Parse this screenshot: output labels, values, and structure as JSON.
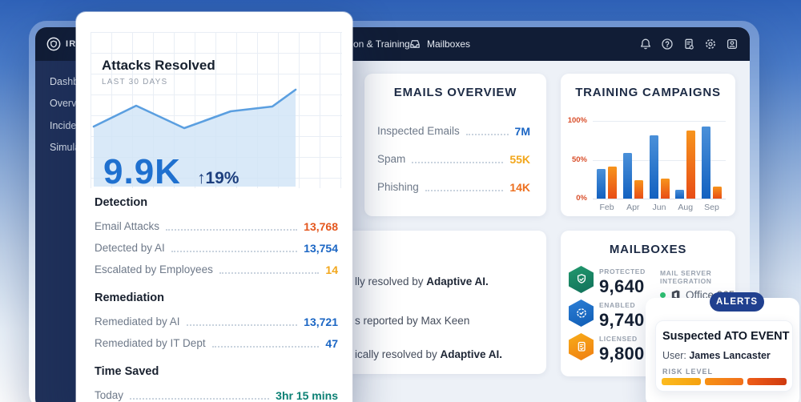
{
  "topbar": {
    "logo_text": "IRON",
    "nav_fragment": "on & Training",
    "nav_mailboxes": "Mailboxes",
    "icons": [
      "bell-icon",
      "help-icon",
      "report-icon",
      "settings-icon",
      "account-icon"
    ]
  },
  "sidebar": {
    "items": [
      "Dashb",
      "Overv",
      "Incide",
      "Simula"
    ]
  },
  "overlay_card": {
    "title": "Attacks Resolved",
    "subtitle": "LAST 30 DAYS",
    "big_stat": {
      "value": "9.9K",
      "value_color": "#1f70cf",
      "delta": "↑19%",
      "delta_color": "#1d3f7e"
    },
    "chart_data": {
      "type": "area",
      "title": "Attacks Resolved",
      "period": "LAST 30 DAYS",
      "points": [
        [
          4,
          118
        ],
        [
          57,
          92
        ],
        [
          117,
          120
        ],
        [
          175,
          99
        ],
        [
          227,
          93
        ],
        [
          256,
          72
        ]
      ],
      "baseline": 193,
      "line_color": "#5b9fe0",
      "fill_color": "#cfe3f6",
      "grid": true
    },
    "sections": [
      {
        "heading": "Detection",
        "rows": [
          {
            "label": "Email Attacks",
            "value": "13,768",
            "color": "#e4571e"
          },
          {
            "label": "Detected by AI",
            "value": "13,754",
            "color": "#1b66c4"
          },
          {
            "label": "Escalated by Employees",
            "value": "14",
            "color": "#f2a71c"
          }
        ]
      },
      {
        "heading": "Remediation",
        "rows": [
          {
            "label": "Remediated by AI",
            "value": "13,721",
            "color": "#1b66c4"
          },
          {
            "label": "Remediated by IT Dept",
            "value": "47",
            "color": "#1b66c4"
          }
        ]
      },
      {
        "heading": "Time Saved",
        "rows": [
          {
            "label": "Today",
            "value": "3hr 15 mins",
            "color": "#0c8074"
          }
        ]
      }
    ]
  },
  "emails_overview": {
    "title": "EMAILS OVERVIEW",
    "rows": [
      {
        "label": "Inspected Emails",
        "value": "7M",
        "color": "#1b66c4"
      },
      {
        "label": "Spam",
        "value": "55K",
        "color": "#f2a71c"
      },
      {
        "label": "Phishing",
        "value": "14K",
        "color": "#ed6f1e"
      }
    ]
  },
  "training_campaigns": {
    "title": "TRAINING CAMPAIGNS",
    "chart_data": {
      "type": "bar",
      "categories": [
        "Feb",
        "Apr",
        "Jun",
        "Aug",
        "Sep"
      ],
      "series": [
        {
          "name": "blue",
          "colors": [
            "#4a90d9",
            "#1261c0"
          ],
          "values": [
            38,
            59,
            81,
            11,
            93
          ]
        },
        {
          "name": "orange",
          "colors": [
            "#f7941d",
            "#e84d16"
          ],
          "values": [
            41,
            24,
            26,
            88,
            15
          ]
        }
      ],
      "ylabels": [
        "100%",
        "50%",
        "0%"
      ],
      "ylim": [
        0,
        100
      ],
      "grid": true,
      "ylabel_color": "#d94f2b"
    }
  },
  "feed": {
    "rows": [
      {
        "text": "lly resolved by ",
        "bold": "Adaptive AI."
      },
      {
        "text": "s reported by Max Keen",
        "bold": ""
      },
      {
        "text": "ically resolved by ",
        "bold": "Adaptive AI."
      }
    ]
  },
  "mailboxes": {
    "title": "MAILBOXES",
    "badges": [
      {
        "label": "PROTECTED",
        "value": "9,640",
        "color": "green"
      },
      {
        "label": "ENABLED",
        "value": "9,740",
        "color": "blue"
      },
      {
        "label": "LICENSED",
        "value": "9,800",
        "color": "orange"
      }
    ],
    "integration": {
      "label": "MAIL SERVER INTEGRATION",
      "status_color": "#2fbf71",
      "provider": "Office 365"
    }
  },
  "alerts": {
    "pill_label": "ALERTS",
    "card": {
      "title": "Suspected ATO EVENT",
      "user_label": "User: ",
      "user_name": "James Lancaster",
      "risk_label": "RISK LEVEL",
      "segments": [
        [
          "#fcbb1e",
          "#f5a10f"
        ],
        [
          "#f79114",
          "#f1711b"
        ],
        [
          "#ef5d17",
          "#cf3a10"
        ]
      ]
    }
  }
}
